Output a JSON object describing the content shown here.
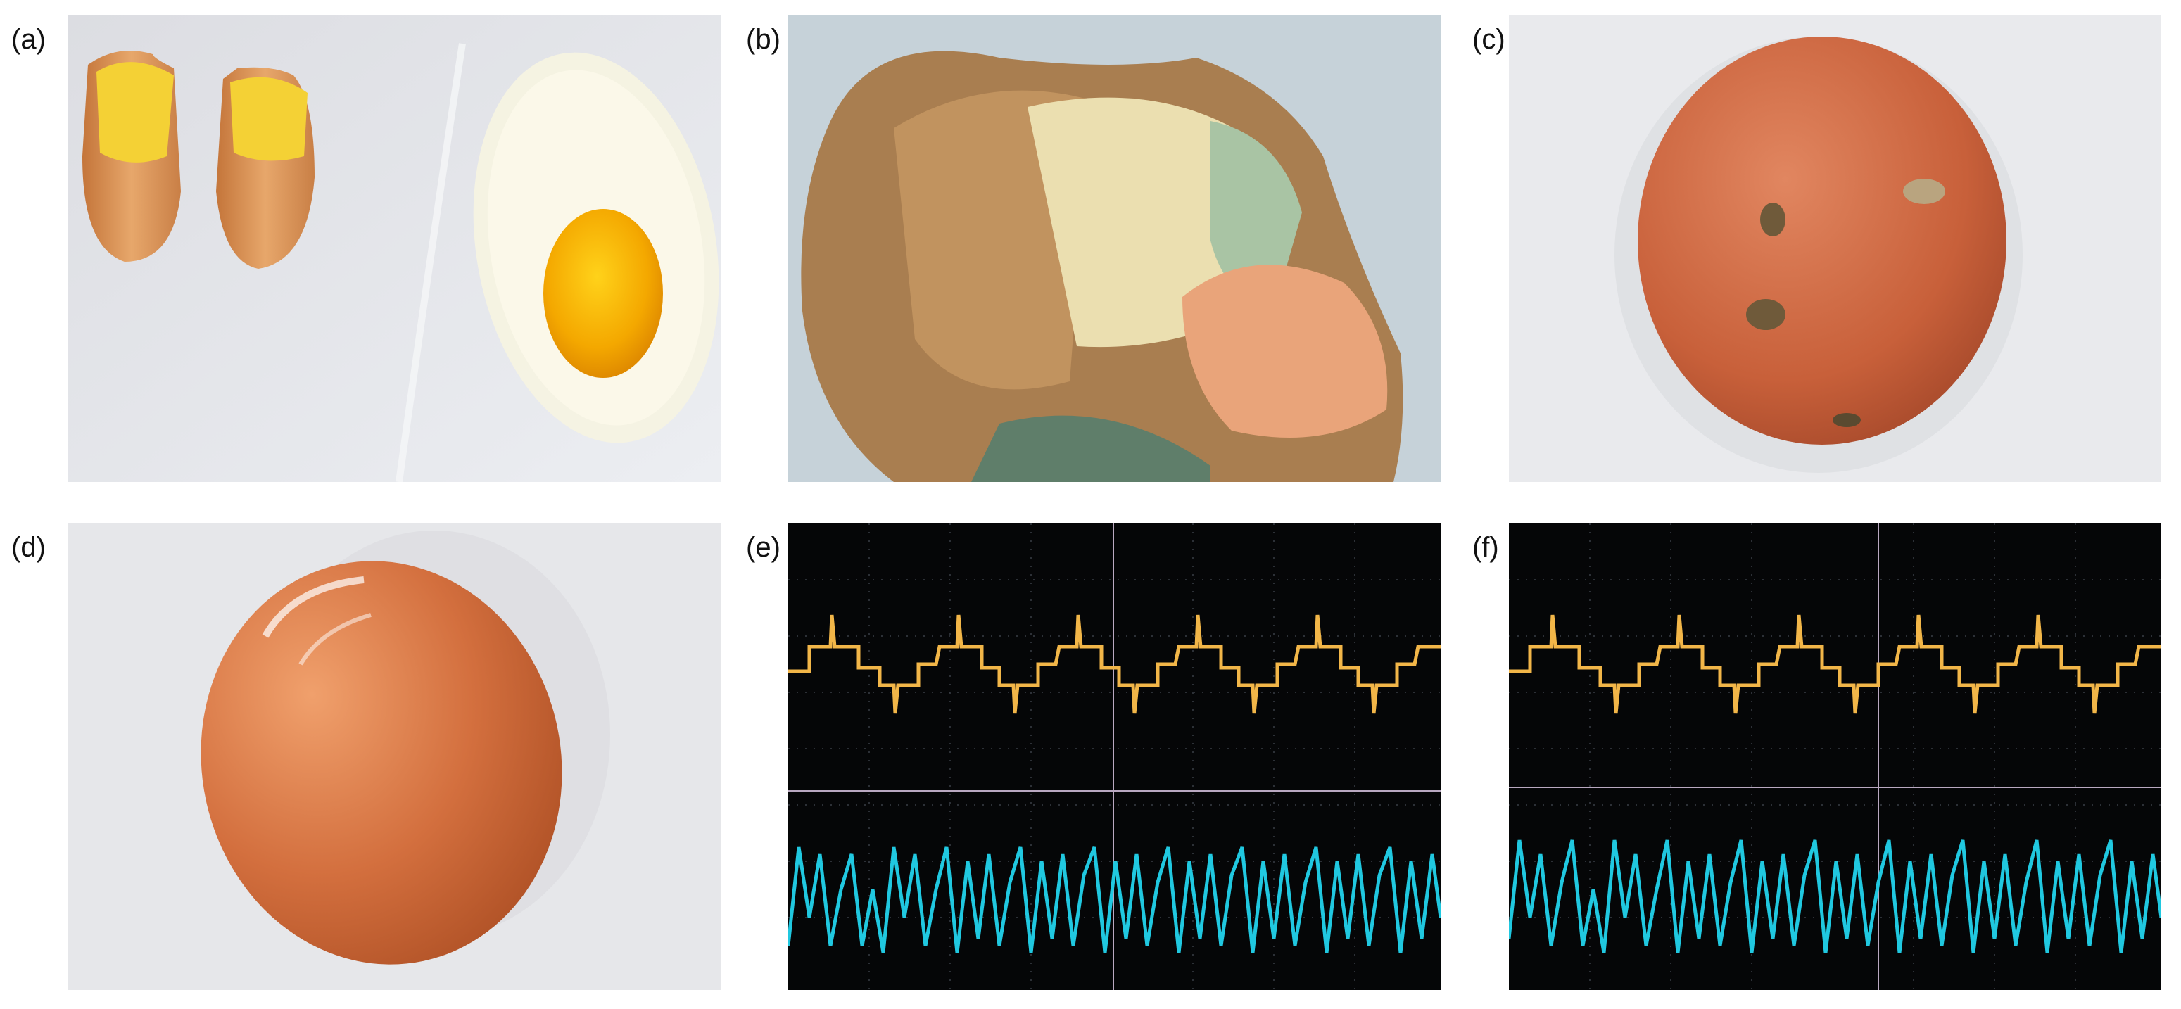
{
  "figure": {
    "panels": [
      {
        "label": "(a)",
        "subject": "boiled-egg-halves-and-raw-egg-icon"
      },
      {
        "label": "(b)",
        "subject": "cracked-eggshell-icon"
      },
      {
        "label": "(c)",
        "subject": "egg-with-surface-spots-icon"
      },
      {
        "label": "(d)",
        "subject": "glossy-brown-egg-icon"
      },
      {
        "label": "(e)",
        "subject": "oscilloscope-trace-icon"
      },
      {
        "label": "(f)",
        "subject": "oscilloscope-trace-icon"
      }
    ]
  },
  "colors": {
    "scope_yellow": "#f2b648",
    "scope_cyan": "#20c8e0",
    "scope_bg": "#050607",
    "egg_brown": "#cf6a42",
    "photo_bg": "#e6e8ec"
  }
}
